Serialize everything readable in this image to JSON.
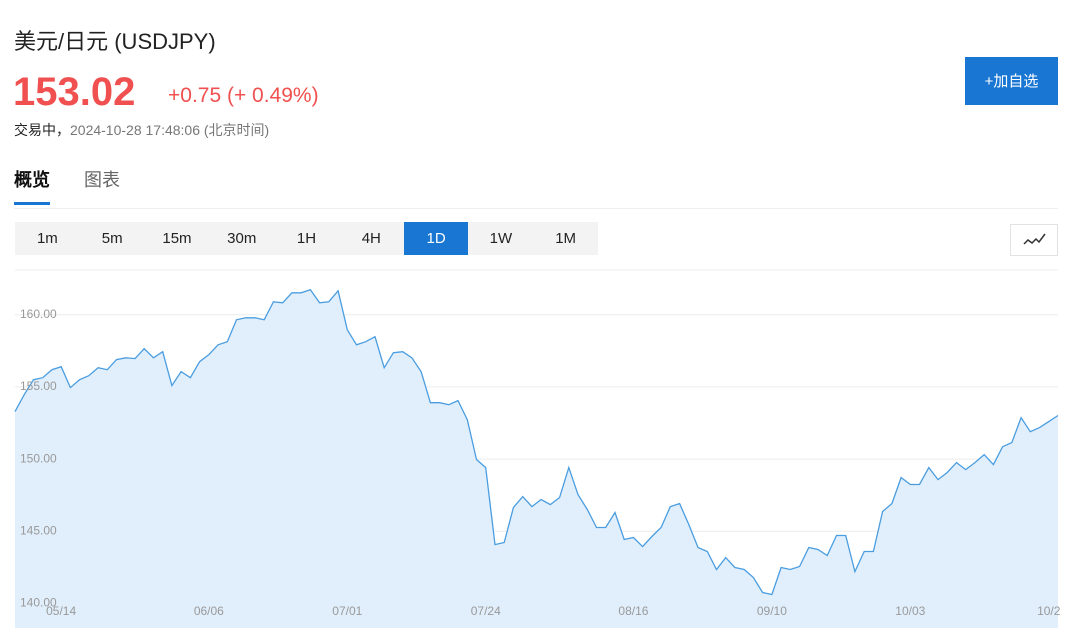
{
  "header": {
    "title": "美元/日元 (USDJPY)",
    "price": "153.02",
    "change": "+0.75 (+ 0.49%)",
    "status": "交易中，",
    "timestamp": "2024-10-28 17:48:06 (北京时间)",
    "watch_button": "+加自选"
  },
  "tabs": [
    {
      "label": "概览",
      "active": true
    },
    {
      "label": "图表",
      "active": false
    }
  ],
  "periods": [
    {
      "label": "1m",
      "active": false
    },
    {
      "label": "5m",
      "active": false
    },
    {
      "label": "15m",
      "active": false
    },
    {
      "label": "30m",
      "active": false
    },
    {
      "label": "1H",
      "active": false
    },
    {
      "label": "4H",
      "active": false
    },
    {
      "label": "1D",
      "active": true
    },
    {
      "label": "1W",
      "active": false
    },
    {
      "label": "1M",
      "active": false
    }
  ],
  "chart_data": {
    "type": "area",
    "color": "#4a9de0",
    "fill": "#e1effc",
    "grid": true,
    "ylim": [
      138.3,
      163.1
    ],
    "yticks": [
      {
        "value": 140,
        "label": "140.00"
      },
      {
        "value": 145,
        "label": "145.00"
      },
      {
        "value": 150,
        "label": "150.00"
      },
      {
        "value": 155,
        "label": "155.00"
      },
      {
        "value": 160,
        "label": "160.00"
      }
    ],
    "categories": [
      null,
      null,
      null,
      null,
      null,
      "05/14",
      null,
      null,
      null,
      null,
      null,
      null,
      null,
      null,
      null,
      null,
      null,
      null,
      null,
      null,
      null,
      "06/06",
      null,
      null,
      null,
      null,
      null,
      null,
      null,
      null,
      null,
      null,
      null,
      null,
      null,
      null,
      "07/01",
      null,
      null,
      null,
      null,
      null,
      null,
      null,
      null,
      null,
      null,
      null,
      null,
      null,
      null,
      "07/24",
      null,
      null,
      null,
      null,
      null,
      null,
      null,
      null,
      null,
      null,
      null,
      null,
      null,
      null,
      null,
      "08/16",
      null,
      null,
      null,
      null,
      null,
      null,
      null,
      null,
      null,
      null,
      null,
      null,
      null,
      null,
      "09/10",
      null,
      null,
      null,
      null,
      null,
      null,
      null,
      null,
      null,
      null,
      null,
      null,
      null,
      null,
      "10/03",
      null,
      null,
      null,
      null,
      null,
      null,
      null,
      null,
      null,
      null,
      null,
      null,
      null,
      null,
      "10/2",
      null
    ],
    "values": [
      153.29,
      154.46,
      155.5,
      155.64,
      156.19,
      156.4,
      154.95,
      155.5,
      155.78,
      156.33,
      156.19,
      156.89,
      157.02,
      156.96,
      157.65,
      157.02,
      157.44,
      155.09,
      156.06,
      155.64,
      156.75,
      157.23,
      157.92,
      158.13,
      159.65,
      159.79,
      159.79,
      159.65,
      160.9,
      160.83,
      161.52,
      161.52,
      161.73,
      160.83,
      160.9,
      161.66,
      158.96,
      157.92,
      158.13,
      158.48,
      156.33,
      157.37,
      157.44,
      157.02,
      156.06,
      153.91,
      153.91,
      153.77,
      154.05,
      152.73,
      149.97,
      149.41,
      144.08,
      144.22,
      146.64,
      147.4,
      146.71,
      147.2,
      146.85,
      147.34,
      149.41,
      147.54,
      146.51,
      145.26,
      145.26,
      146.3,
      144.43,
      144.57,
      143.94,
      144.64,
      145.26,
      146.71,
      146.92,
      145.47,
      143.88,
      143.6,
      142.35,
      143.18,
      142.49,
      142.35,
      141.8,
      140.76,
      140.62,
      142.49,
      142.35,
      142.56,
      143.88,
      143.74,
      143.32,
      144.71,
      144.71,
      142.21,
      143.6,
      143.6,
      146.37,
      146.92,
      148.72,
      148.24,
      148.24,
      149.41,
      148.58,
      149.07,
      149.76,
      149.27,
      149.76,
      150.31,
      149.62,
      150.86,
      151.14,
      152.87,
      151.9,
      152.18,
      152.6,
      153.02
    ]
  }
}
